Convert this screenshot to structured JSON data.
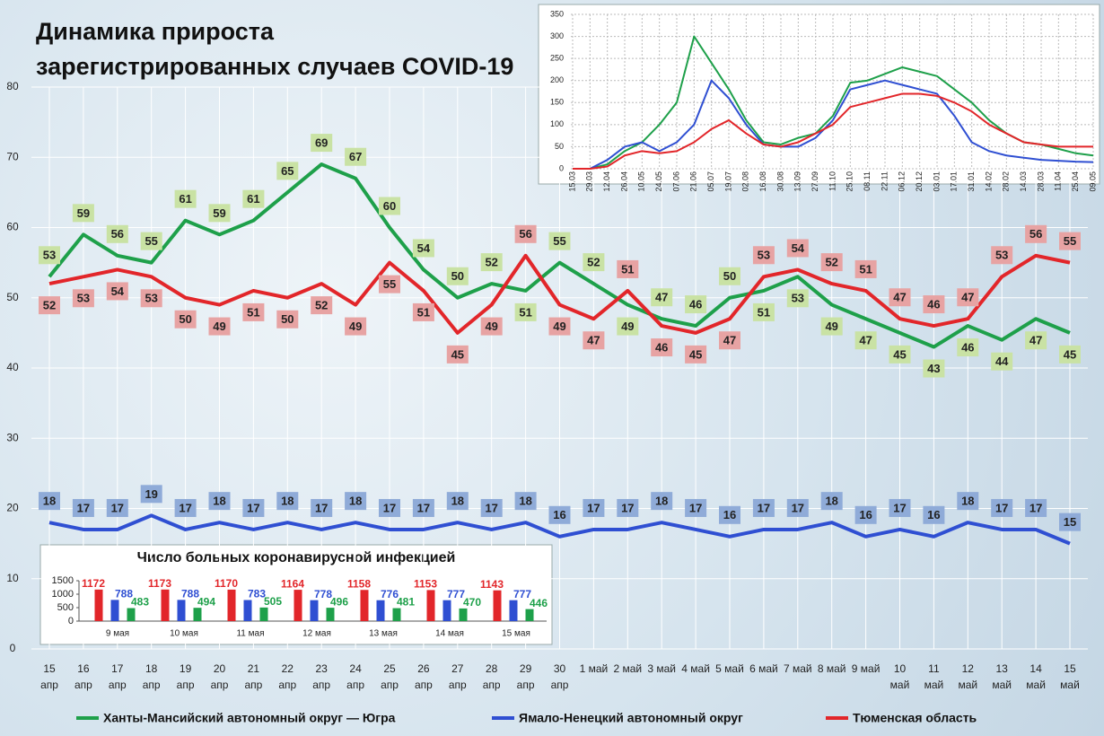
{
  "chart_data": [
    {
      "type": "line",
      "title": "Динамика прироста\nзарегистрированных случаев COVID-19",
      "categories": [
        "15\nапр",
        "16\nапр",
        "17\nапр",
        "18\nапр",
        "19\nапр",
        "20\nапр",
        "21\nапр",
        "22\nапр",
        "23\nапр",
        "24\nапр",
        "25\nапр",
        "26\nапр",
        "27\nапр",
        "28\nапр",
        "29\nапр",
        "30\nапр",
        "1 май",
        "2 май",
        "3 май",
        "4 май",
        "5 май",
        "6 май",
        "7 май",
        "8 май",
        "9 май",
        "10\nмай",
        "11\nмай",
        "12\nмай",
        "13\nмай",
        "14\nмай",
        "15\nмай"
      ],
      "series": [
        {
          "name": "Ханты-Мансийский автономный округ — Югра",
          "color": "#1ea04a",
          "label_color": "#c9e2a4",
          "values": [
            53,
            59,
            56,
            55,
            61,
            59,
            61,
            65,
            69,
            67,
            60,
            54,
            50,
            52,
            51,
            55,
            52,
            49,
            47,
            46,
            50,
            51,
            53,
            49,
            47,
            45,
            43,
            46,
            44,
            47,
            45
          ]
        },
        {
          "name": "Ямало-Ненецкий автономный округ",
          "color": "#2f4fd2",
          "label_color": "#8fabd8",
          "values": [
            18,
            17,
            17,
            19,
            17,
            18,
            17,
            18,
            17,
            18,
            17,
            17,
            18,
            17,
            18,
            16,
            17,
            17,
            18,
            17,
            16,
            17,
            17,
            18,
            16,
            17,
            16,
            18,
            17,
            17,
            15
          ]
        },
        {
          "name": "Тюменская область",
          "color": "#e2262a",
          "label_color": "#e7a3a3",
          "values": [
            52,
            53,
            54,
            53,
            50,
            49,
            51,
            50,
            52,
            49,
            55,
            51,
            45,
            49,
            56,
            49,
            47,
            51,
            46,
            45,
            47,
            53,
            54,
            52,
            51,
            47,
            46,
            47,
            53,
            56,
            55
          ]
        }
      ],
      "ylim": [
        0,
        80
      ],
      "yticks": [
        0,
        10,
        20,
        30,
        40,
        50,
        60,
        70,
        80
      ],
      "grid": true,
      "data_labels": true
    },
    {
      "type": "line",
      "categories": [
        "15.03",
        "29.03",
        "12.04",
        "26.04",
        "10.05",
        "24.05",
        "07.06",
        "21.06",
        "05.07",
        "19.07",
        "02.08",
        "16.08",
        "30.08",
        "13.09",
        "27.09",
        "11.10",
        "25.10",
        "08.11",
        "22.11",
        "06.12",
        "20.12",
        "03.01",
        "17.01",
        "31.01",
        "14.02",
        "28.02",
        "14.03",
        "28.03",
        "11.04",
        "25.04",
        "09.05"
      ],
      "series": [
        {
          "color": "#1ea04a",
          "values": [
            0,
            0,
            10,
            40,
            60,
            100,
            150,
            300,
            240,
            180,
            110,
            60,
            55,
            70,
            80,
            120,
            195,
            200,
            215,
            230,
            220,
            210,
            180,
            150,
            110,
            80,
            60,
            55,
            45,
            35,
            30
          ]
        },
        {
          "color": "#2f4fd2",
          "values": [
            0,
            0,
            20,
            50,
            60,
            40,
            60,
            100,
            200,
            160,
            100,
            55,
            50,
            50,
            70,
            110,
            180,
            190,
            200,
            190,
            180,
            170,
            120,
            60,
            40,
            30,
            25,
            20,
            18,
            16,
            15
          ]
        },
        {
          "color": "#e2262a",
          "values": [
            0,
            0,
            5,
            30,
            40,
            35,
            40,
            60,
            90,
            110,
            80,
            55,
            50,
            60,
            80,
            100,
            140,
            150,
            160,
            170,
            170,
            165,
            150,
            130,
            100,
            80,
            60,
            55,
            50,
            50,
            50
          ]
        }
      ],
      "ylim": [
        0,
        350
      ],
      "yticks": [
        0,
        50,
        100,
        150,
        200,
        250,
        300,
        350
      ],
      "grid": true
    },
    {
      "type": "bar",
      "title": "Число больных коронавирусной инфекцией",
      "categories": [
        "9 мая",
        "10 мая",
        "11 мая",
        "12 мая",
        "13 мая",
        "14 мая",
        "15 мая"
      ],
      "series": [
        {
          "color": "#e2262a",
          "values": [
            1172,
            1173,
            1170,
            1164,
            1158,
            1153,
            1143
          ]
        },
        {
          "color": "#2f4fd2",
          "values": [
            788,
            788,
            783,
            778,
            776,
            777,
            777
          ]
        },
        {
          "color": "#1ea04a",
          "values": [
            483,
            494,
            505,
            496,
            481,
            470,
            446
          ]
        }
      ],
      "ylim": [
        0,
        1500
      ],
      "yticks": [
        0,
        500,
        1000,
        1500
      ],
      "data_labels": true
    }
  ]
}
